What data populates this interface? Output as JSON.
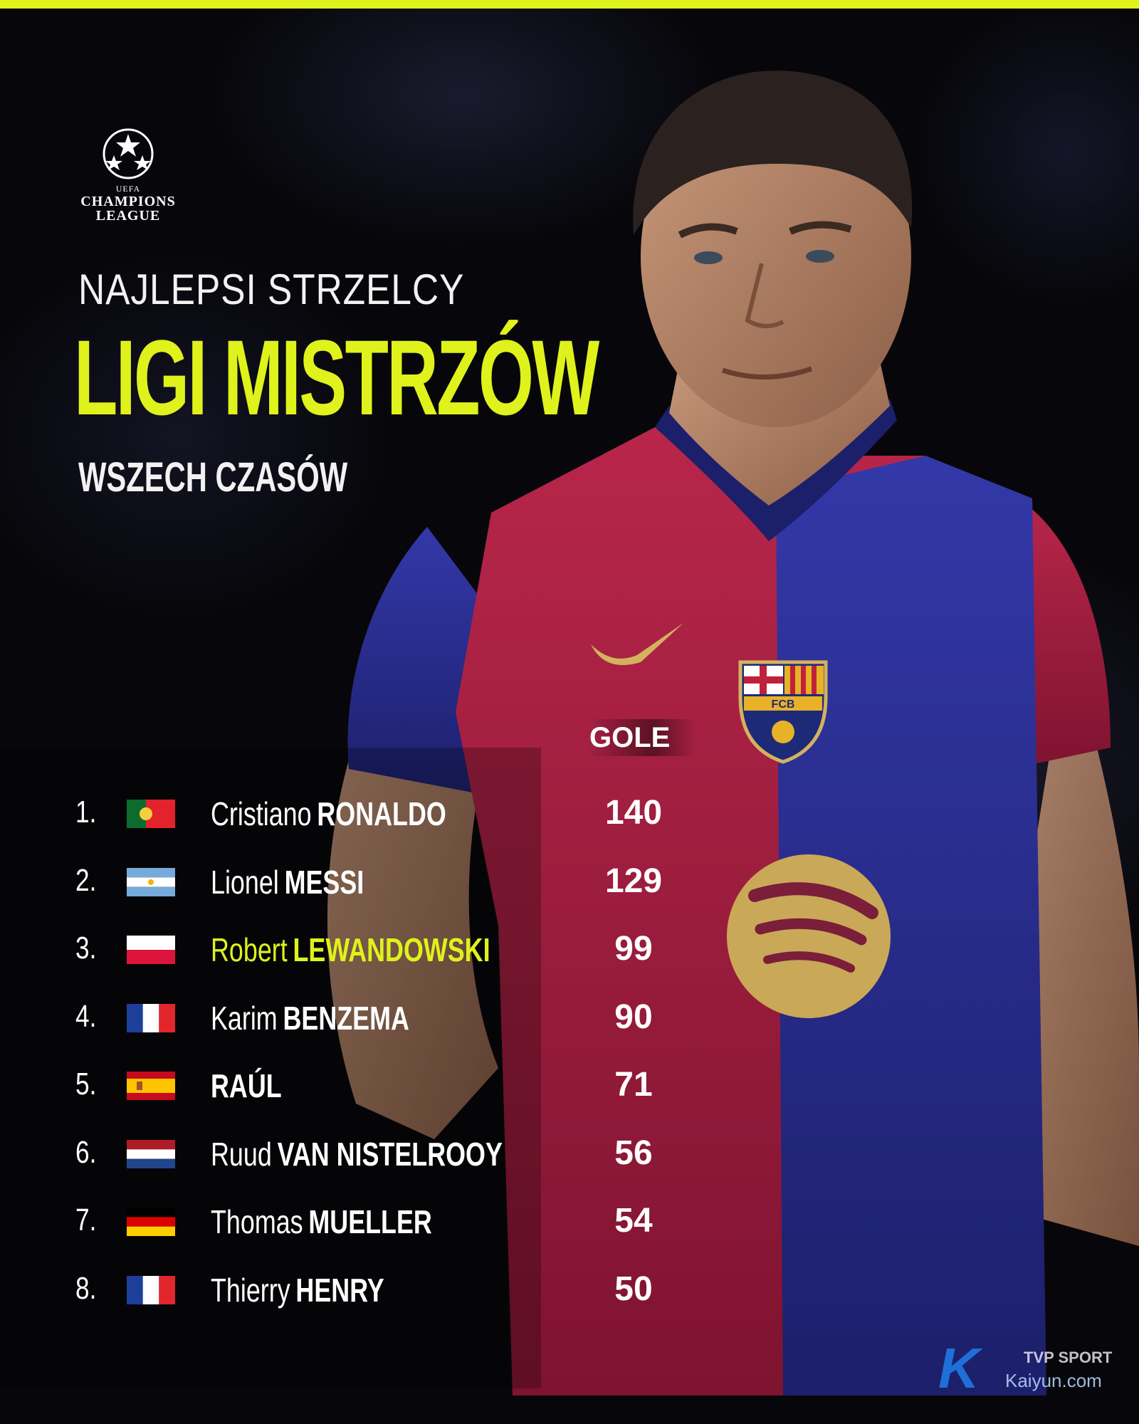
{
  "header": {
    "logo_uefa": "UEFA",
    "logo_word1": "CHAMPIONS",
    "logo_word2": "LEAGUE",
    "line1": "NAJLEPSI STRZELCY",
    "line2": "LIGI MISTRZÓW",
    "line3": "WSZECH CZASÓW"
  },
  "table": {
    "goals_header": "GOLE",
    "rows": [
      {
        "rank": "1.",
        "flag": "portugal",
        "first": "Cristiano",
        "last": "RONALDO",
        "goals": "140"
      },
      {
        "rank": "2.",
        "flag": "argentina",
        "first": "Lionel",
        "last": "MESSI",
        "goals": "129"
      },
      {
        "rank": "3.",
        "flag": "poland",
        "first": "Robert",
        "last": "LEWANDOWSKI",
        "goals": "99"
      },
      {
        "rank": "4.",
        "flag": "france",
        "first": "Karim",
        "last": "BENZEMA",
        "goals": "90"
      },
      {
        "rank": "5.",
        "flag": "spain",
        "first": "",
        "last": "RAÚL",
        "goals": "71"
      },
      {
        "rank": "6.",
        "flag": "netherlands",
        "first": "Ruud",
        "last": "VAN NISTELROOY",
        "goals": "56"
      },
      {
        "rank": "7.",
        "flag": "germany",
        "first": "Thomas",
        "last": "MUELLER",
        "goals": "54"
      },
      {
        "rank": "8.",
        "flag": "france",
        "first": "Thierry",
        "last": "HENRY",
        "goals": "50"
      }
    ]
  },
  "crest": {
    "letters": "FCB"
  },
  "watermark": {
    "text": "TVP SPORT",
    "site": "Kaiyun.com"
  },
  "colors": {
    "accent": "#dff21b",
    "background": "#07070b",
    "shirt_red": "#a51c3f",
    "shirt_blue": "#2b2f8f"
  }
}
